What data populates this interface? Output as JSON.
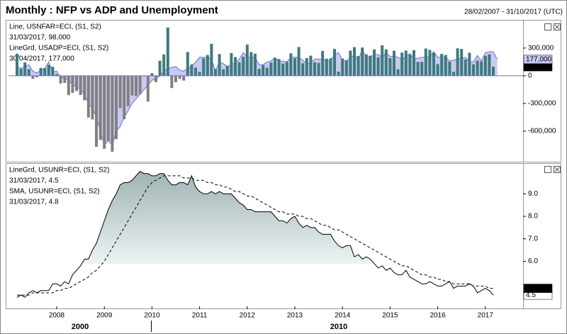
{
  "header": {
    "title": "Monthly : NFP vs ADP and Unemployment",
    "range": "28/02/2007 - 31/10/2017 (UTC)"
  },
  "chart_data": [
    {
      "type": "bar",
      "categories": [
        null,
        null,
        null,
        null,
        null,
        null,
        null,
        null,
        null,
        null,
        "2008",
        null,
        null,
        null,
        null,
        null,
        null,
        null,
        null,
        null,
        null,
        null,
        "2009",
        null,
        null,
        null,
        null,
        null,
        null,
        null,
        null,
        null,
        null,
        null,
        "2010",
        null,
        null,
        null,
        null,
        null,
        null,
        null,
        null,
        null,
        null,
        null,
        "2011",
        null,
        null,
        null,
        null,
        null,
        null,
        null,
        null,
        null,
        null,
        null,
        "2012",
        null,
        null,
        null,
        null,
        null,
        null,
        null,
        null,
        null,
        null,
        null,
        "2013",
        null,
        null,
        null,
        null,
        null,
        null,
        null,
        null,
        null,
        null,
        null,
        "2014",
        null,
        null,
        null,
        null,
        null,
        null,
        null,
        null,
        null,
        null,
        null,
        "2015",
        null,
        null,
        null,
        null,
        null,
        null,
        null,
        null,
        null,
        null,
        null,
        "2016",
        null,
        null,
        null,
        null,
        null,
        null,
        null,
        null,
        null,
        null,
        null,
        "2017",
        null,
        null,
        null
      ],
      "series": [
        {
          "name": "Line, USNFAR=ECI, (S1, S2)",
          "last_label": "31/03/2017, 98,000",
          "end_tag": "98,000",
          "type": "bar",
          "color": "#3d7b7b",
          "negative_color": "#808080",
          "text_color": "#000000",
          "tag_fill": "#000000",
          "tag_text": "#ffffff",
          "values": [
            239000,
            75000,
            144000,
            71000,
            -33000,
            -16000,
            85000,
            82000,
            118000,
            97000,
            17000,
            -84000,
            -78000,
            -210000,
            -185000,
            -165000,
            -209000,
            -266000,
            -452000,
            -473000,
            -769000,
            -695000,
            -791000,
            -703000,
            -823000,
            -686000,
            -351000,
            -470000,
            -329000,
            -212000,
            -219000,
            -200000,
            -7000,
            -279000,
            28000,
            -69000,
            163000,
            232000,
            522000,
            -133000,
            -70000,
            -34000,
            -52000,
            257000,
            123000,
            88000,
            42000,
            188000,
            225000,
            346000,
            73000,
            235000,
            70000,
            107000,
            246000,
            202000,
            146000,
            207000,
            338000,
            257000,
            239000,
            75000,
            115000,
            87000,
            143000,
            190000,
            181000,
            132000,
            149000,
            243000,
            190000,
            311000,
            135000,
            192000,
            218000,
            146000,
            140000,
            269000,
            185000,
            189000,
            291000,
            45000,
            187000,
            168000,
            272000,
            310000,
            213000,
            306000,
            232000,
            218000,
            286000,
            200000,
            331000,
            286000,
            190000,
            271000,
            70000,
            251000,
            273000,
            228000,
            277000,
            150000,
            149000,
            295000,
            280000,
            249000,
            126000,
            237000,
            225000,
            153000,
            43000,
            297000,
            291000,
            176000,
            249000,
            124000,
            164000,
            155000,
            216000,
            232000,
            98000,
            null
          ]
        },
        {
          "name": "LineGrd, USADP=ECI, (S1, S2)",
          "last_label": "30/04/2017, 177,000",
          "end_tag": "177,000",
          "type": "area",
          "color": "#6f6fd6",
          "fill": "#c9c9f2",
          "text_color": "#8a8ae0",
          "tag_fill": "#c9c9f2",
          "tag_text": "#000000",
          "values": [
            100000,
            80000,
            100000,
            120000,
            50000,
            30000,
            60000,
            80000,
            150000,
            40000,
            50000,
            -20000,
            -30000,
            -50000,
            -100000,
            -120000,
            -150000,
            -200000,
            -300000,
            -350000,
            -450000,
            -600000,
            -750000,
            -700000,
            -750000,
            -600000,
            -550000,
            -450000,
            -380000,
            -300000,
            -250000,
            -200000,
            -150000,
            -100000,
            -50000,
            -30000,
            0,
            50000,
            80000,
            90000,
            100000,
            60000,
            50000,
            80000,
            100000,
            150000,
            200000,
            200000,
            200000,
            180000,
            50000,
            150000,
            130000,
            100000,
            120000,
            140000,
            180000,
            250000,
            200000,
            200000,
            200000,
            120000,
            120000,
            150000,
            160000,
            200000,
            150000,
            160000,
            150000,
            200000,
            200000,
            200000,
            170000,
            130000,
            140000,
            180000,
            180000,
            180000,
            160000,
            160000,
            230000,
            250000,
            170000,
            160000,
            200000,
            220000,
            180000,
            280000,
            200000,
            200000,
            230000,
            230000,
            200000,
            250000,
            210000,
            210000,
            200000,
            170000,
            210000,
            240000,
            180000,
            190000,
            200000,
            200000,
            210000,
            260000,
            200000,
            200000,
            200000,
            160000,
            170000,
            180000,
            190000,
            200000,
            150000,
            150000,
            220000,
            160000,
            250000,
            260000,
            260000,
            177000
          ]
        }
      ],
      "ylim": [
        -930000,
        590000
      ],
      "yticks": [
        {
          "value": 300000,
          "label": "300,000"
        },
        0,
        {
          "value": -300000,
          "label": "-300,000"
        },
        {
          "value": -600000,
          "label": "-600,000"
        }
      ]
    },
    {
      "type": "line",
      "categories": [
        null,
        null,
        null,
        null,
        null,
        null,
        null,
        null,
        null,
        null,
        "2008",
        null,
        null,
        null,
        null,
        null,
        null,
        null,
        null,
        null,
        null,
        null,
        "2009",
        null,
        null,
        null,
        null,
        null,
        null,
        null,
        null,
        null,
        null,
        null,
        "2010",
        null,
        null,
        null,
        null,
        null,
        null,
        null,
        null,
        null,
        null,
        null,
        "2011",
        null,
        null,
        null,
        null,
        null,
        null,
        null,
        null,
        null,
        null,
        null,
        "2012",
        null,
        null,
        null,
        null,
        null,
        null,
        null,
        null,
        null,
        null,
        null,
        "2013",
        null,
        null,
        null,
        null,
        null,
        null,
        null,
        null,
        null,
        null,
        null,
        "2014",
        null,
        null,
        null,
        null,
        null,
        null,
        null,
        null,
        null,
        null,
        null,
        "2015",
        null,
        null,
        null,
        null,
        null,
        null,
        null,
        null,
        null,
        null,
        null,
        "2016",
        null,
        null,
        null,
        null,
        null,
        null,
        null,
        null,
        null,
        null,
        null,
        "2017",
        null,
        null,
        null
      ],
      "x_group_labels": [
        "2000",
        "2010"
      ],
      "series": [
        {
          "name": "LineGrd, USUNR=ECI, (S1, S2)",
          "last_label": "31/03/2017, 4.5",
          "end_tag": "4.5",
          "type": "area",
          "color": "#000000",
          "fill": "#9fb2b2",
          "text_color": "#000000",
          "tag_fill": "#ffffff",
          "tag_text": "#000000",
          "values": [
            4.4,
            4.5,
            4.4,
            4.6,
            4.7,
            4.6,
            4.7,
            4.7,
            4.7,
            5.0,
            5.0,
            4.9,
            5.1,
            5.0,
            5.4,
            5.6,
            5.8,
            6.1,
            6.1,
            6.5,
            6.8,
            7.3,
            7.8,
            8.3,
            8.7,
            9.0,
            9.4,
            9.5,
            9.5,
            9.6,
            9.8,
            10.0,
            9.9,
            9.9,
            9.8,
            9.8,
            9.9,
            9.9,
            9.6,
            9.4,
            9.4,
            9.5,
            9.5,
            9.4,
            9.8,
            9.3,
            9.1,
            9.0,
            9.0,
            9.1,
            9.0,
            9.1,
            9.0,
            9.0,
            9.0,
            8.8,
            8.6,
            8.5,
            8.3,
            8.3,
            8.2,
            8.2,
            8.2,
            8.2,
            8.2,
            8.0,
            7.8,
            7.8,
            7.7,
            7.9,
            8.0,
            7.7,
            7.5,
            7.6,
            7.5,
            7.5,
            7.3,
            7.2,
            7.2,
            7.2,
            6.9,
            6.7,
            6.6,
            6.7,
            6.7,
            6.2,
            6.3,
            6.1,
            6.2,
            6.1,
            5.9,
            5.7,
            5.8,
            5.6,
            5.7,
            5.5,
            5.4,
            5.4,
            5.6,
            5.3,
            5.2,
            5.1,
            5.0,
            5.0,
            5.1,
            5.0,
            4.9,
            4.9,
            5.0,
            5.1,
            4.8,
            4.9,
            4.9,
            4.9,
            5.0,
            4.9,
            4.6,
            4.7,
            4.8,
            4.7,
            4.5,
            null
          ]
        },
        {
          "name": "SMA, USUNR=ECI, (S1, S2)",
          "last_label": "31/03/2017, 4.8",
          "end_tag": "4.8",
          "type": "line",
          "color": "#000000",
          "dash": "4,3",
          "text_color": "#000000",
          "tag_fill": "#000000",
          "tag_text": "#ffffff",
          "values": [
            4.5,
            4.5,
            4.5,
            4.5,
            4.6,
            4.6,
            4.6,
            4.6,
            4.6,
            4.6,
            4.7,
            4.7,
            4.8,
            4.8,
            4.9,
            5.0,
            5.1,
            5.2,
            5.3,
            5.5,
            5.6,
            5.8,
            6.0,
            6.3,
            6.6,
            6.9,
            7.2,
            7.5,
            7.8,
            8.1,
            8.4,
            8.7,
            9.0,
            9.3,
            9.5,
            9.6,
            9.7,
            9.8,
            9.8,
            9.8,
            9.8,
            9.8,
            9.7,
            9.7,
            9.7,
            9.6,
            9.6,
            9.6,
            9.5,
            9.5,
            9.4,
            9.4,
            9.3,
            9.3,
            9.2,
            9.1,
            9.1,
            9.0,
            8.9,
            8.9,
            8.8,
            8.7,
            8.6,
            8.5,
            8.4,
            8.3,
            8.2,
            8.2,
            8.1,
            8.1,
            8.1,
            8.0,
            8.0,
            7.9,
            7.9,
            7.8,
            7.7,
            7.6,
            7.6,
            7.5,
            7.4,
            7.4,
            7.3,
            7.2,
            7.1,
            7.0,
            6.9,
            6.8,
            6.7,
            6.6,
            6.5,
            6.4,
            6.3,
            6.2,
            6.1,
            6.0,
            5.9,
            5.8,
            5.8,
            5.7,
            5.6,
            5.5,
            5.4,
            5.4,
            5.3,
            5.3,
            5.2,
            5.2,
            5.1,
            5.1,
            5.0,
            5.0,
            5.0,
            5.0,
            5.0,
            4.9,
            4.9,
            4.9,
            4.9,
            4.8,
            4.8,
            null
          ]
        }
      ],
      "ylim": [
        4.0,
        10.3
      ],
      "yticks": [
        {
          "value": 6,
          "label": "6.0"
        },
        {
          "value": 7,
          "label": "7.0"
        },
        {
          "value": 8,
          "label": "8.0"
        },
        {
          "value": 9,
          "label": "9.0"
        }
      ]
    }
  ]
}
